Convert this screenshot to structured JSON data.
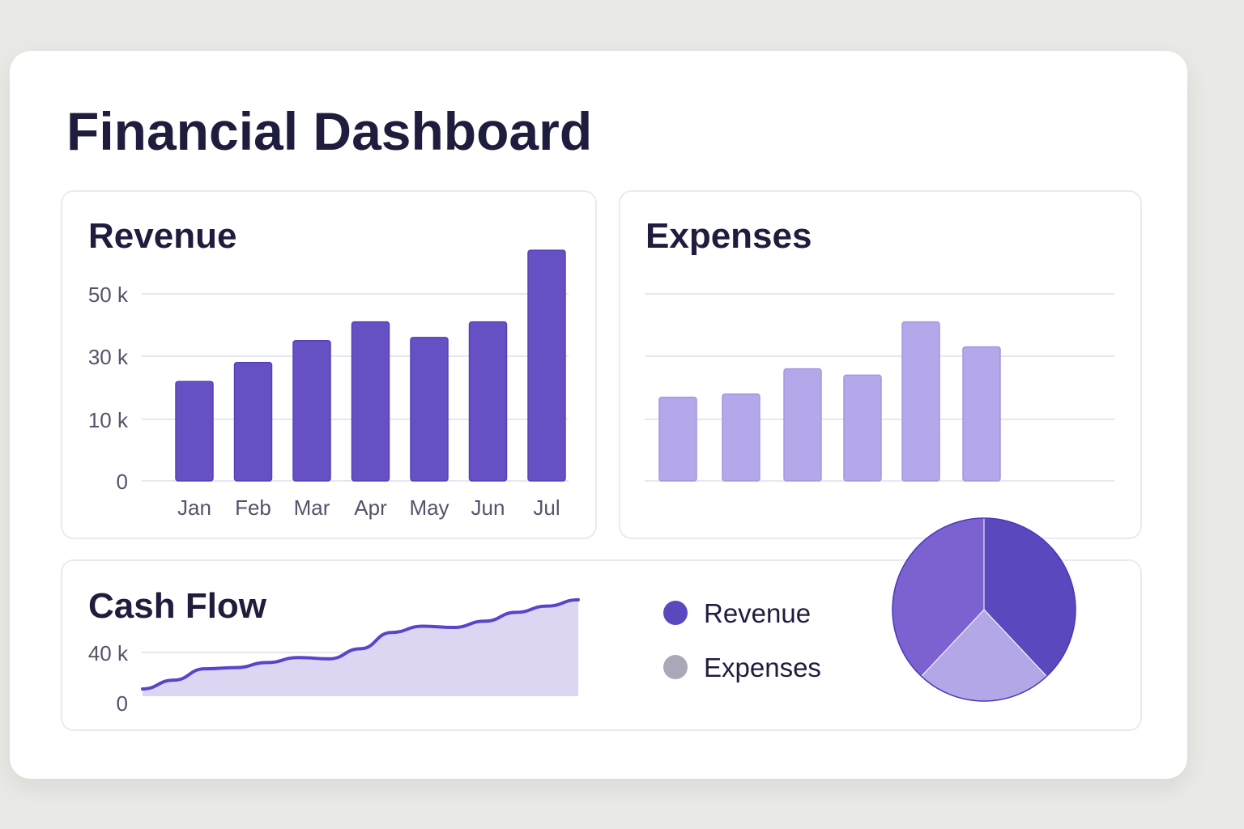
{
  "header": {
    "title": "Financial Dashboard"
  },
  "colors": {
    "revenue": "#6650c4",
    "expenses": "#b4a8ea",
    "cashflow_line": "#5b44c8",
    "cashflow_fill": "#ddd6f3",
    "legend_expenses": "#aaa7b9",
    "pie": [
      "#5a48bf",
      "#b3a7e8",
      "#7c62d0"
    ]
  },
  "chart_data": [
    {
      "type": "bar",
      "title": "Revenue",
      "categories": [
        "Jan",
        "Feb",
        "Mar",
        "Apr",
        "May",
        "Jun",
        "Jul"
      ],
      "values": [
        22,
        28,
        35,
        41,
        36,
        41,
        64
      ],
      "yticks": [
        "0",
        "10 k",
        "30 k",
        "50 k"
      ],
      "ytick_values": [
        0,
        10,
        30,
        50
      ],
      "grid": true
    },
    {
      "type": "bar",
      "title": "Expenses",
      "values": [
        17,
        18,
        26,
        24,
        41,
        33
      ],
      "grid": true
    },
    {
      "type": "area",
      "title": "Cash Flow",
      "yticks": [
        "0",
        "40 k"
      ],
      "ytick_values": [
        0,
        40
      ],
      "values": [
        11,
        18,
        27,
        28,
        32,
        36,
        35,
        43,
        56,
        61,
        60,
        65,
        72,
        77,
        82
      ]
    },
    {
      "type": "pie",
      "legend": [
        "Revenue",
        "Expenses"
      ],
      "values": [
        0.38,
        0.24,
        0.38
      ]
    }
  ]
}
